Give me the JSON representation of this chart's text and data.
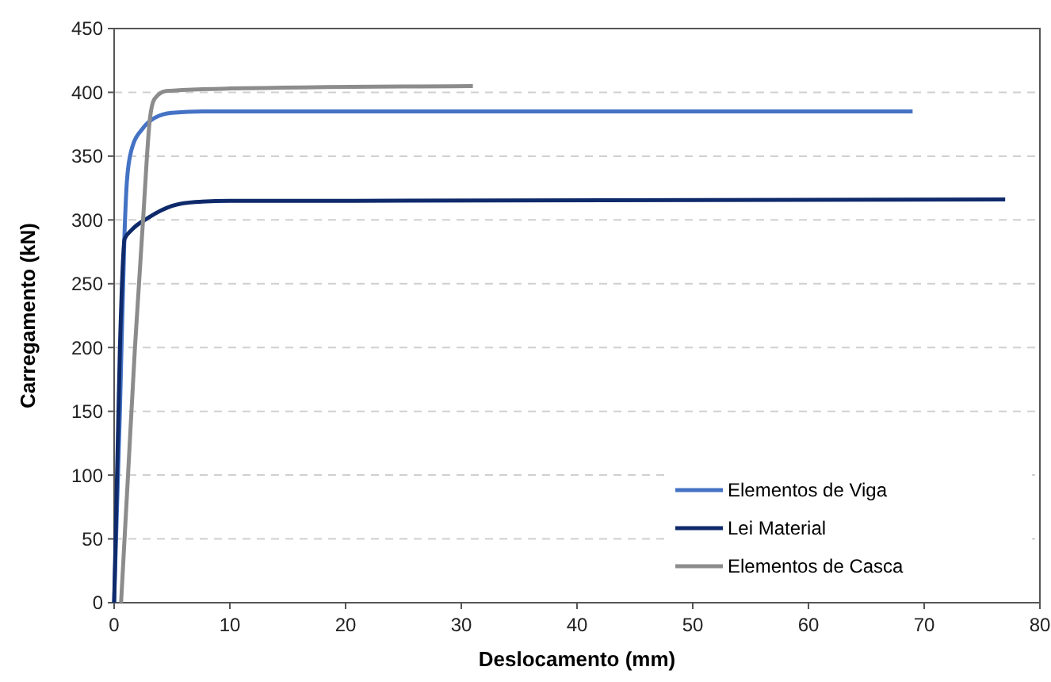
{
  "chart_data": {
    "type": "line",
    "xlabel": "Deslocamento (mm)",
    "ylabel": "Carregamento (kN)",
    "xlim": [
      0,
      80
    ],
    "xticks": [
      0,
      10,
      20,
      30,
      40,
      50,
      60,
      70,
      80
    ],
    "ylim": [
      0,
      450
    ],
    "yticks": [
      0,
      50,
      100,
      150,
      200,
      250,
      300,
      350,
      400,
      450
    ],
    "grid": "y",
    "legend": "bottom right",
    "line_style": "solid",
    "series": [
      {
        "name": "Elementos de Viga",
        "color": "#4472c4",
        "x": [
          0,
          0.5,
          0.9,
          1.1,
          1.5,
          2.5,
          3.5,
          5,
          8,
          20,
          69
        ],
        "values": [
          0,
          150,
          290,
          330,
          355,
          372,
          380,
          384,
          385,
          385,
          385
        ]
      },
      {
        "name": "Lei Material",
        "color": "#0f2a6b",
        "x": [
          0,
          0.5,
          0.9,
          1.5,
          3,
          5,
          7,
          10,
          20,
          77
        ],
        "values": [
          0,
          200,
          285,
          292,
          302,
          311,
          314,
          315,
          315,
          316
        ]
      },
      {
        "name": "Elementos de Casca",
        "color": "#8c8c8c",
        "x": [
          0.6,
          1.2,
          1.8,
          2.5,
          3.1,
          3.5,
          4.5,
          10,
          31
        ],
        "values": [
          0,
          100,
          200,
          300,
          380,
          395,
          401,
          403,
          405
        ]
      }
    ]
  }
}
